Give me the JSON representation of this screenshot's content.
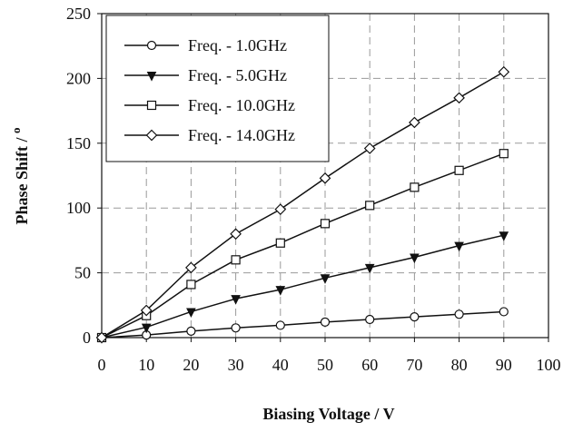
{
  "chart_data": {
    "type": "line",
    "title": "",
    "xlabel": "Biasing Voltage / V",
    "ylabel": "Phase Shift / ",
    "ylabel_unit_superscript": "o",
    "xlim": [
      0,
      100
    ],
    "ylim": [
      0,
      250
    ],
    "xticks": [
      0,
      10,
      20,
      30,
      40,
      50,
      60,
      70,
      80,
      90,
      100
    ],
    "yticks": [
      0,
      50,
      100,
      150,
      200,
      250
    ],
    "grid": true,
    "grid_style": "dashed",
    "legend_position": "top-left",
    "x": [
      0,
      10,
      20,
      30,
      40,
      50,
      60,
      70,
      80,
      90
    ],
    "series": [
      {
        "name": "Freq. -  1.0GHz",
        "marker": "circle",
        "values": [
          0,
          2,
          5,
          7.5,
          9.5,
          12,
          14,
          16,
          18,
          20
        ]
      },
      {
        "name": "Freq. -  5.0GHz",
        "marker": "triangle-down",
        "values": [
          0,
          8,
          20,
          30,
          37,
          46,
          54,
          62,
          71,
          79
        ]
      },
      {
        "name": "Freq. - 10.0GHz",
        "marker": "square",
        "values": [
          0,
          17,
          41,
          60,
          73,
          88,
          102,
          116,
          129,
          142
        ]
      },
      {
        "name": "Freq. - 14.0GHz",
        "marker": "diamond",
        "values": [
          0,
          21,
          54,
          80,
          99,
          123,
          146,
          166,
          185,
          205
        ]
      }
    ]
  }
}
